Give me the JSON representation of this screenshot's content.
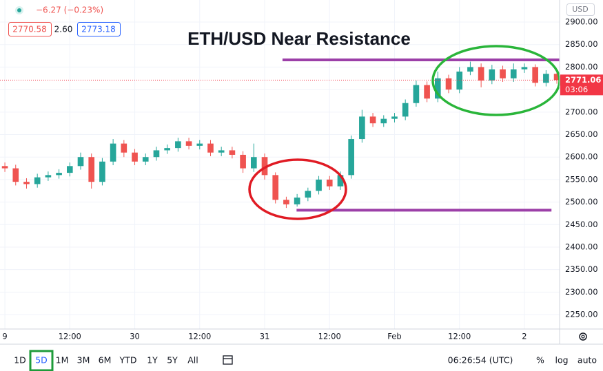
{
  "header": {
    "change": "−6.27 (−0.23%)",
    "bid": "2770.58",
    "spread": "2.60",
    "ask": "2773.18",
    "currency": "USD",
    "countdown": "03:06"
  },
  "toolbar": {
    "ranges": [
      "1D",
      "5D",
      "1M",
      "3M",
      "6M",
      "YTD",
      "1Y",
      "5Y",
      "All"
    ],
    "active": "5D",
    "time": "06:26:54 (UTC)",
    "options": [
      "%",
      "log",
      "auto"
    ]
  },
  "chart_data": {
    "type": "candlestick",
    "title": "ETH/USD Near Resistance",
    "up_color": "#26a69a",
    "down_color": "#ef5350",
    "grid": true,
    "last_price": 2771.06,
    "last_price_color": "#f23645",
    "x": [
      0,
      2,
      4,
      6,
      8,
      10,
      12,
      14,
      16,
      18,
      20,
      22,
      24,
      26,
      28,
      30,
      32,
      34,
      36,
      38,
      40,
      42,
      44,
      46,
      48,
      50,
      52,
      54,
      56,
      58,
      60,
      62,
      64,
      66,
      68,
      70,
      72,
      74,
      76,
      78,
      80,
      82,
      84,
      86,
      88,
      90,
      92,
      94,
      96,
      98,
      100,
      102
    ],
    "open": [
      2580,
      2575,
      2545,
      2540,
      2555,
      2560,
      2565,
      2580,
      2600,
      2545,
      2590,
      2630,
      2610,
      2590,
      2600,
      2615,
      2620,
      2635,
      2625,
      2630,
      2610,
      2615,
      2605,
      2575,
      2600,
      2560,
      2505,
      2495,
      2510,
      2525,
      2550,
      2535,
      2560,
      2640,
      2690,
      2675,
      2685,
      2690,
      2720,
      2760,
      2730,
      2775,
      2750,
      2790,
      2800,
      2770,
      2795,
      2775,
      2795,
      2800,
      2765,
      2785
    ],
    "high": [
      2588,
      2583,
      2553,
      2563,
      2568,
      2573,
      2588,
      2610,
      2608,
      2598,
      2640,
      2638,
      2618,
      2608,
      2623,
      2628,
      2643,
      2643,
      2638,
      2638,
      2623,
      2623,
      2613,
      2630,
      2608,
      2566,
      2512,
      2518,
      2532,
      2558,
      2558,
      2568,
      2648,
      2705,
      2698,
      2693,
      2698,
      2728,
      2770,
      2768,
      2790,
      2783,
      2800,
      2812,
      2808,
      2805,
      2803,
      2808,
      2808,
      2806,
      2793,
      2790
    ],
    "low": [
      2567,
      2537,
      2530,
      2532,
      2547,
      2552,
      2557,
      2572,
      2530,
      2537,
      2582,
      2600,
      2582,
      2582,
      2592,
      2607,
      2612,
      2617,
      2617,
      2602,
      2602,
      2597,
      2565,
      2567,
      2550,
      2497,
      2487,
      2490,
      2502,
      2517,
      2527,
      2527,
      2552,
      2632,
      2667,
      2667,
      2677,
      2682,
      2712,
      2722,
      2722,
      2742,
      2742,
      2782,
      2755,
      2762,
      2767,
      2767,
      2787,
      2757,
      2757,
      2763
    ],
    "close": [
      2575,
      2545,
      2540,
      2555,
      2560,
      2565,
      2580,
      2600,
      2545,
      2590,
      2630,
      2610,
      2590,
      2600,
      2615,
      2620,
      2635,
      2625,
      2630,
      2610,
      2615,
      2605,
      2575,
      2600,
      2560,
      2505,
      2495,
      2510,
      2525,
      2550,
      2535,
      2560,
      2640,
      2690,
      2675,
      2685,
      2690,
      2720,
      2760,
      2730,
      2775,
      2750,
      2790,
      2800,
      2770,
      2795,
      2775,
      2795,
      2800,
      2765,
      2785,
      2771
    ],
    "xlim": [
      -0.9,
      102.5
    ],
    "ylim": [
      2218,
      2949
    ],
    "xticks": [
      {
        "value": 0,
        "label": "9"
      },
      {
        "value": 12,
        "label": "12:00"
      },
      {
        "value": 24,
        "label": "30"
      },
      {
        "value": 36,
        "label": "12:00"
      },
      {
        "value": 48,
        "label": "31"
      },
      {
        "value": 60,
        "label": "12:00"
      },
      {
        "value": 72,
        "label": "Feb"
      },
      {
        "value": 84,
        "label": "12:00"
      },
      {
        "value": 96,
        "label": "2"
      }
    ],
    "yticks": [
      {
        "value": 2250,
        "label": "2250.00"
      },
      {
        "value": 2300,
        "label": "2300.00"
      },
      {
        "value": 2350,
        "label": "2350.00"
      },
      {
        "value": 2400,
        "label": "2400.00"
      },
      {
        "value": 2450,
        "label": "2450.00"
      },
      {
        "value": 2500,
        "label": "2500.00"
      },
      {
        "value": 2550,
        "label": "2550.00"
      },
      {
        "value": 2600,
        "label": "2600.00"
      },
      {
        "value": 2650,
        "label": "2650.00"
      },
      {
        "value": 2700,
        "label": "2700.00"
      },
      {
        "value": 2750,
        "label": "2750.00"
      },
      {
        "value": 2800,
        "label": "2800.00"
      },
      {
        "value": 2850,
        "label": "2850.00"
      },
      {
        "value": 2900,
        "label": "2900.00"
      }
    ],
    "levels": [
      {
        "y": 2816,
        "x": [
          51.3,
          102.5
        ],
        "color": "#9c3fa8"
      },
      {
        "y": 2482,
        "x": [
          53.9,
          101
        ],
        "color": "#9c3fa8"
      }
    ]
  }
}
